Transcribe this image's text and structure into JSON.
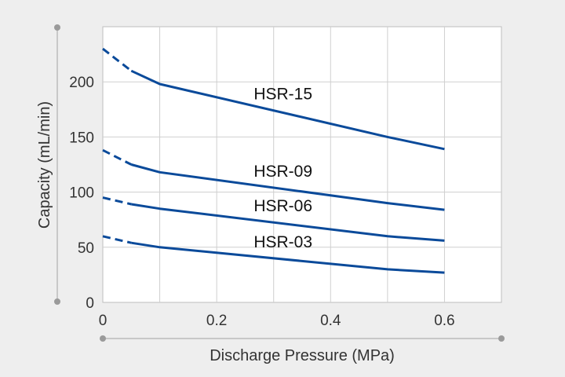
{
  "chart_data": {
    "type": "line",
    "title": "",
    "xlabel": "Discharge Pressure (MPa)",
    "ylabel": "Capacity (mL/min)",
    "xlim": [
      0,
      0.7
    ],
    "ylim": [
      0,
      250
    ],
    "xticks": [
      0,
      0.2,
      0.4,
      0.6
    ],
    "xtick_labels": [
      "0",
      "0.2",
      "0.4",
      "0.6"
    ],
    "yticks": [
      0,
      50,
      100,
      150,
      200
    ],
    "ytick_labels": [
      "0",
      "50",
      "100",
      "150",
      "200"
    ],
    "grid": true,
    "legend": "none",
    "line_color": "#0a4a9a",
    "dashed_segment_note_range": [
      0,
      0.05
    ],
    "series": [
      {
        "name": "HSR-15",
        "x": [
          0,
          0.05,
          0.1,
          0.5,
          0.6
        ],
        "y": [
          230,
          210,
          198,
          150,
          139
        ]
      },
      {
        "name": "HSR-09",
        "x": [
          0,
          0.05,
          0.1,
          0.5,
          0.6
        ],
        "y": [
          138,
          125,
          118,
          90,
          84
        ]
      },
      {
        "name": "HSR-06",
        "x": [
          0,
          0.05,
          0.1,
          0.5,
          0.6
        ],
        "y": [
          95,
          89,
          85,
          60,
          56
        ]
      },
      {
        "name": "HSR-03",
        "x": [
          0,
          0.05,
          0.1,
          0.5,
          0.6
        ],
        "y": [
          60,
          54,
          50,
          30,
          27
        ]
      }
    ]
  }
}
